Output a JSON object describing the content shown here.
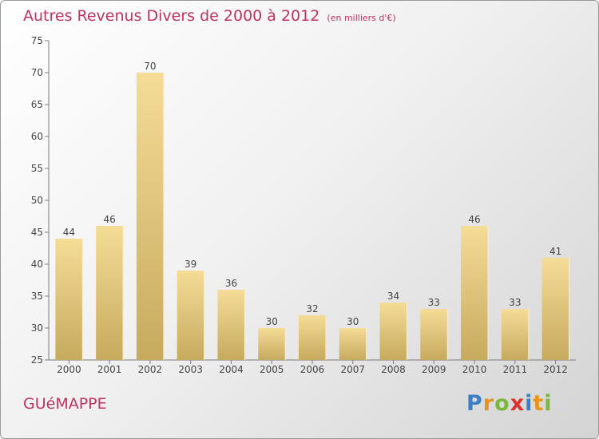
{
  "title": "Autres Revenus Divers de 2000 à 2012",
  "unit": "(en milliers d'€)",
  "town": "GUéMAPPE",
  "logo": [
    "P",
    "r",
    "o",
    "x",
    "i",
    "t",
    "i"
  ],
  "colors": {
    "title": "#c0335e",
    "bar_top": "#f5dc97",
    "bar_bottom": "#c6aa5e"
  },
  "chart_data": {
    "type": "bar",
    "categories": [
      "2000",
      "2001",
      "2002",
      "2003",
      "2004",
      "2005",
      "2006",
      "2007",
      "2008",
      "2009",
      "2010",
      "2011",
      "2012"
    ],
    "values": [
      44,
      46,
      70,
      39,
      36,
      30,
      32,
      30,
      34,
      33,
      46,
      33,
      41
    ],
    "ylim": [
      25,
      75
    ],
    "yticks": [
      25,
      30,
      35,
      40,
      45,
      50,
      55,
      60,
      65,
      70,
      75
    ],
    "grid": false,
    "data_labels": true
  }
}
